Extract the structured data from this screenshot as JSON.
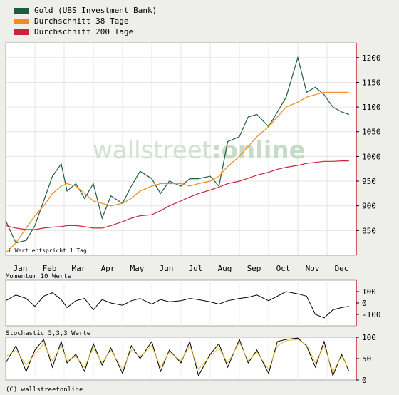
{
  "legend": [
    {
      "label": "Gold (UBS Investment Bank)",
      "color": "#1f5c3f"
    },
    {
      "label": "Durchschnitt 38 Tage",
      "color": "#f28a1c"
    },
    {
      "label": "Durchschnitt 200 Tage",
      "color": "#c8263a"
    }
  ],
  "watermark": {
    "part1": "wallstreet",
    "part2": ":online"
  },
  "note": "1 Wert entspricht 1 Tag",
  "footer": "(C) wallstreetonline",
  "momentum_title": "Momentum 10 Werte",
  "stochastic_title": "Stochastic 5,3,3 Werte",
  "chart_data": [
    {
      "type": "line",
      "months": [
        "Jan",
        "Feb",
        "Mar",
        "Apr",
        "May",
        "Jun",
        "Jul",
        "Aug",
        "Sep",
        "Oct",
        "Nov",
        "Dec"
      ],
      "x_month_index": [
        0,
        0.35,
        0.7,
        1.0,
        1.3,
        1.6,
        1.9,
        2.1,
        2.4,
        2.7,
        3.0,
        3.3,
        3.6,
        4.0,
        4.3,
        4.6,
        5.0,
        5.3,
        5.6,
        6.0,
        6.3,
        6.6,
        7.0,
        7.3,
        7.6,
        8.0,
        8.3,
        8.6,
        9.0,
        9.3,
        9.6,
        10.0,
        10.3,
        10.6,
        10.9,
        11.2,
        11.5,
        11.75
      ],
      "series": [
        {
          "name": "Gold (UBS Investment Bank)",
          "color": "#1f5c3f",
          "values": [
            870,
            825,
            830,
            860,
            910,
            960,
            985,
            930,
            945,
            915,
            945,
            875,
            920,
            905,
            940,
            970,
            955,
            925,
            950,
            940,
            955,
            955,
            960,
            940,
            1030,
            1040,
            1080,
            1085,
            1060,
            1090,
            1120,
            1200,
            1130,
            1140,
            1125,
            1100,
            1090,
            1085
          ]
        },
        {
          "name": "Durchschnitt 38 Tage",
          "color": "#f28a1c",
          "values": [
            805,
            825,
            855,
            880,
            900,
            925,
            940,
            945,
            940,
            925,
            910,
            905,
            900,
            905,
            915,
            930,
            940,
            945,
            945,
            945,
            940,
            945,
            950,
            960,
            980,
            1000,
            1020,
            1040,
            1060,
            1080,
            1100,
            1110,
            1120,
            1125,
            1130,
            1130,
            1130,
            1130
          ]
        },
        {
          "name": "Durchschnitt 200 Tage",
          "color": "#c8263a",
          "values": [
            860,
            855,
            852,
            852,
            855,
            857,
            858,
            860,
            860,
            858,
            855,
            855,
            860,
            868,
            875,
            880,
            882,
            890,
            900,
            910,
            918,
            925,
            932,
            938,
            945,
            950,
            956,
            962,
            968,
            974,
            978,
            982,
            986,
            988,
            990,
            990,
            991,
            991
          ]
        }
      ],
      "ylim": [
        800,
        1230
      ],
      "yticks": [
        850,
        900,
        950,
        1000,
        1050,
        1100,
        1150,
        1200
      ]
    },
    {
      "type": "line",
      "series": [
        {
          "name": "",
          "color": "#000000",
          "values": [
            20,
            70,
            40,
            -30,
            60,
            90,
            30,
            -40,
            20,
            40,
            -60,
            30,
            0,
            -20,
            20,
            40,
            -10,
            30,
            10,
            20,
            40,
            30,
            10,
            -10,
            20,
            40,
            50,
            70,
            20,
            60,
            100,
            80,
            60,
            -100,
            -130,
            -60,
            -40,
            -30
          ]
        }
      ],
      "ylim": [
        -200,
        200
      ],
      "yticks": [
        100,
        0,
        -100
      ]
    },
    {
      "type": "line",
      "series": [
        {
          "name": "",
          "color": "#000000",
          "values": [
            40,
            80,
            20,
            70,
            95,
            30,
            90,
            40,
            60,
            20,
            85,
            35,
            75,
            15,
            80,
            50,
            90,
            20,
            70,
            40,
            90,
            10,
            60,
            85,
            30,
            95,
            40,
            70,
            15,
            90,
            95,
            98,
            80,
            30,
            90,
            10,
            60,
            20
          ]
        },
        {
          "name": "",
          "color": "#e8c23a",
          "values": [
            55,
            70,
            35,
            60,
            85,
            45,
            80,
            45,
            55,
            30,
            75,
            40,
            70,
            25,
            70,
            55,
            80,
            30,
            65,
            45,
            80,
            25,
            55,
            75,
            40,
            88,
            45,
            65,
            25,
            80,
            92,
            95,
            82,
            40,
            80,
            20,
            55,
            25
          ]
        }
      ],
      "ylim": [
        0,
        100
      ],
      "yticks": [
        100,
        50,
        0
      ]
    }
  ]
}
